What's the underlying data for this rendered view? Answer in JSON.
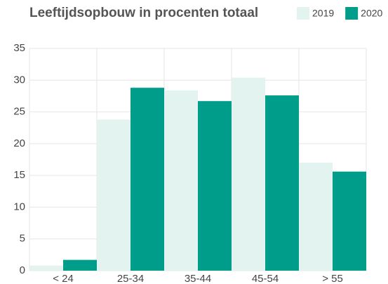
{
  "chart_data": {
    "type": "bar",
    "title": "Leeftijdsopbouw in procenten totaal",
    "categories": [
      "< 24",
      "25-34",
      "35-44",
      "45-54",
      "> 55"
    ],
    "series": [
      {
        "name": "2019",
        "color": "#e3f4f0",
        "values": [
          0.8,
          23.8,
          28.4,
          30.4,
          17.0
        ]
      },
      {
        "name": "2020",
        "color": "#009e8a",
        "values": [
          1.7,
          28.8,
          26.7,
          27.6,
          15.6
        ]
      }
    ],
    "ylim": [
      0,
      35
    ],
    "yticks": [
      0,
      5,
      10,
      15,
      20,
      25,
      30,
      35
    ],
    "grid": true,
    "legend": "top-right"
  }
}
